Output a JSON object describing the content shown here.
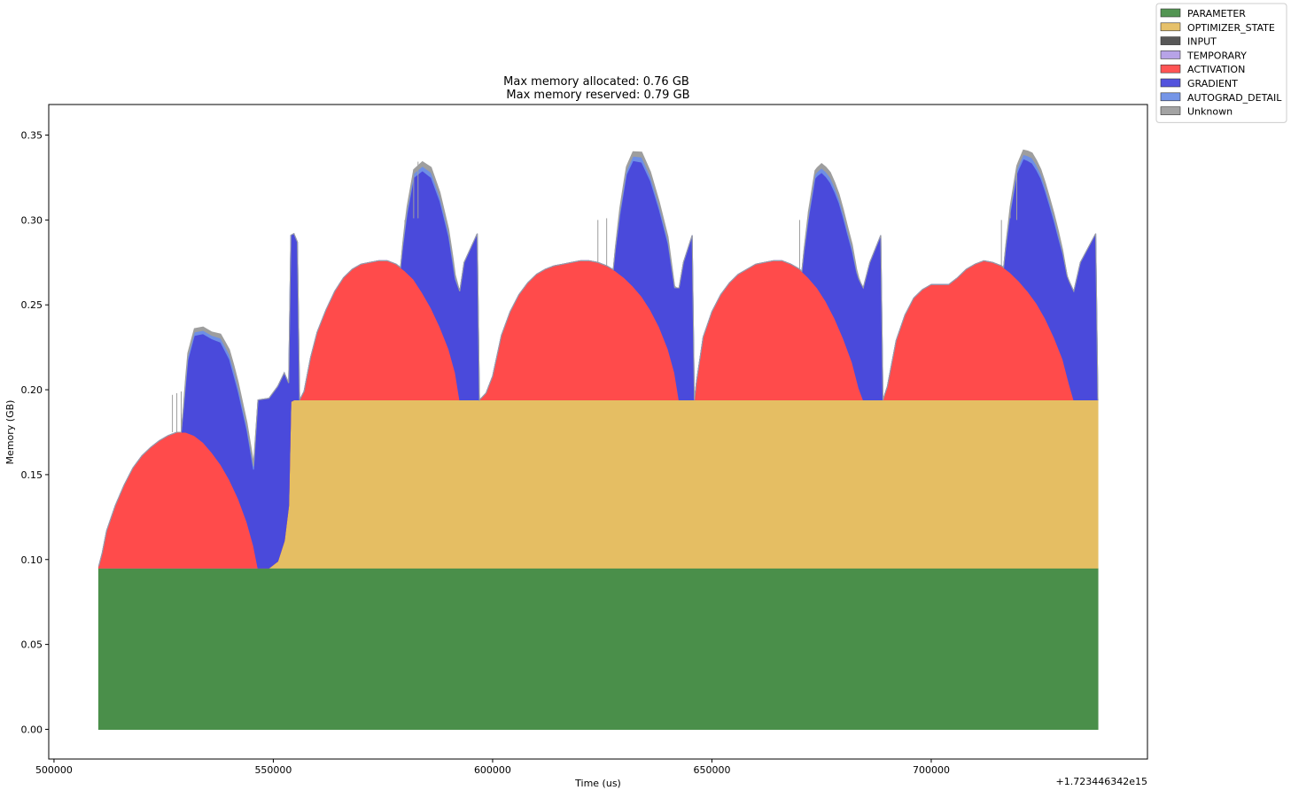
{
  "chart_data": {
    "type": "area",
    "title_lines": [
      "Max memory allocated: 0.76 GB",
      "Max memory reserved: 0.79 GB"
    ],
    "xlabel": "Time (us)",
    "ylabel": "Memory (GB)",
    "x_offset_label": "+1.723446342e15",
    "xlim": [
      498800,
      749300
    ],
    "ylim": [
      -0.0175,
      0.368
    ],
    "x_ticks": [
      500000,
      550000,
      600000,
      650000,
      700000
    ],
    "x_tick_labels": [
      "500000",
      "550000",
      "600000",
      "650000",
      "700000"
    ],
    "y_ticks": [
      0.0,
      0.05,
      0.1,
      0.15,
      0.2,
      0.25,
      0.3,
      0.35
    ],
    "y_tick_labels": [
      "0.00",
      "0.05",
      "0.10",
      "0.15",
      "0.20",
      "0.25",
      "0.30",
      "0.35"
    ],
    "legend_position": "top-right",
    "series": [
      {
        "name": "PARAMETER",
        "color": "#4a8f4a",
        "points": [
          [
            510200,
            0.095
          ],
          [
            738000,
            0.095
          ]
        ]
      },
      {
        "name": "OPTIMIZER_STATE",
        "color": "#e5be63",
        "points": [
          [
            510200,
            0
          ],
          [
            549000,
            0
          ],
          [
            551000,
            0.004
          ],
          [
            552500,
            0.016
          ],
          [
            553500,
            0.037
          ],
          [
            554000,
            0.098
          ],
          [
            554700,
            0.099
          ],
          [
            738000,
            0.099
          ]
        ]
      },
      {
        "name": "INPUT",
        "color": "#4f4f4f",
        "points": [
          [
            510200,
            0
          ],
          [
            738000,
            0
          ]
        ]
      },
      {
        "name": "TEMPORARY",
        "color": "#b39ee6",
        "points": [
          [
            510200,
            0
          ],
          [
            738000,
            0
          ]
        ]
      },
      {
        "name": "ACTIVATION",
        "color": "#ff4b4b",
        "points": [
          [
            510200,
            0.001
          ],
          [
            511000,
            0.009
          ],
          [
            512000,
            0.022
          ],
          [
            514000,
            0.037
          ],
          [
            516000,
            0.049
          ],
          [
            518000,
            0.059
          ],
          [
            520000,
            0.066
          ],
          [
            522000,
            0.071
          ],
          [
            524000,
            0.075
          ],
          [
            526000,
            0.078
          ],
          [
            528000,
            0.08
          ],
          [
            530000,
            0.08
          ],
          [
            532000,
            0.078
          ],
          [
            534000,
            0.074
          ],
          [
            536000,
            0.068
          ],
          [
            538000,
            0.061
          ],
          [
            540000,
            0.052
          ],
          [
            542000,
            0.041
          ],
          [
            544000,
            0.027
          ],
          [
            545500,
            0.013
          ],
          [
            546500,
            0
          ],
          [
            556000,
            0
          ],
          [
            557000,
            0.005
          ],
          [
            558500,
            0.025
          ],
          [
            560000,
            0.04
          ],
          [
            562000,
            0.053
          ],
          [
            564000,
            0.064
          ],
          [
            566000,
            0.072
          ],
          [
            568000,
            0.077
          ],
          [
            570000,
            0.08
          ],
          [
            572000,
            0.081
          ],
          [
            574000,
            0.082
          ],
          [
            576000,
            0.082
          ],
          [
            578000,
            0.08
          ],
          [
            580000,
            0.076
          ],
          [
            582000,
            0.071
          ],
          [
            584000,
            0.063
          ],
          [
            586000,
            0.054
          ],
          [
            588000,
            0.043
          ],
          [
            590000,
            0.03
          ],
          [
            591500,
            0.016
          ],
          [
            592500,
            0
          ],
          [
            597000,
            0
          ],
          [
            598500,
            0.004
          ],
          [
            600000,
            0.014
          ],
          [
            602000,
            0.038
          ],
          [
            604000,
            0.052
          ],
          [
            606000,
            0.062
          ],
          [
            608000,
            0.069
          ],
          [
            610000,
            0.074
          ],
          [
            612000,
            0.077
          ],
          [
            614000,
            0.079
          ],
          [
            616000,
            0.08
          ],
          [
            618000,
            0.081
          ],
          [
            620000,
            0.082
          ],
          [
            622000,
            0.082
          ],
          [
            624000,
            0.081
          ],
          [
            626000,
            0.079
          ],
          [
            628000,
            0.076
          ],
          [
            630000,
            0.072
          ],
          [
            632000,
            0.067
          ],
          [
            634000,
            0.061
          ],
          [
            636000,
            0.053
          ],
          [
            638000,
            0.043
          ],
          [
            640000,
            0.03
          ],
          [
            641500,
            0.016
          ],
          [
            642500,
            0
          ],
          [
            646000,
            0
          ],
          [
            646500,
            0.011
          ],
          [
            648000,
            0.037
          ],
          [
            650000,
            0.052
          ],
          [
            652000,
            0.062
          ],
          [
            654000,
            0.069
          ],
          [
            656000,
            0.074
          ],
          [
            658000,
            0.077
          ],
          [
            660000,
            0.08
          ],
          [
            662000,
            0.081
          ],
          [
            664000,
            0.082
          ],
          [
            666000,
            0.082
          ],
          [
            668000,
            0.08
          ],
          [
            670000,
            0.077
          ],
          [
            672000,
            0.072
          ],
          [
            674000,
            0.066
          ],
          [
            676000,
            0.058
          ],
          [
            678000,
            0.048
          ],
          [
            680000,
            0.036
          ],
          [
            682000,
            0.022
          ],
          [
            683500,
            0.007
          ],
          [
            684500,
            0
          ],
          [
            689000,
            0
          ],
          [
            690000,
            0.008
          ],
          [
            692000,
            0.035
          ],
          [
            694000,
            0.05
          ],
          [
            696000,
            0.06
          ],
          [
            698000,
            0.065
          ],
          [
            700000,
            0.068
          ],
          [
            702000,
            0.068
          ],
          [
            704000,
            0.068
          ],
          [
            706000,
            0.072
          ],
          [
            708000,
            0.077
          ],
          [
            710000,
            0.08
          ],
          [
            712000,
            0.082
          ],
          [
            714000,
            0.081
          ],
          [
            716000,
            0.079
          ],
          [
            718000,
            0.075
          ],
          [
            720000,
            0.07
          ],
          [
            722000,
            0.064
          ],
          [
            724000,
            0.057
          ],
          [
            726000,
            0.048
          ],
          [
            728000,
            0.037
          ],
          [
            730000,
            0.024
          ],
          [
            731500,
            0.009
          ],
          [
            732500,
            0
          ],
          [
            738000,
            0
          ]
        ]
      },
      {
        "name": "GRADIENT",
        "color": "#4a4adb",
        "points": [
          [
            510200,
            0
          ],
          [
            529000,
            0
          ],
          [
            529500,
            0.013
          ],
          [
            530500,
            0.043
          ],
          [
            532000,
            0.059
          ],
          [
            534000,
            0.064
          ],
          [
            536000,
            0.067
          ],
          [
            538000,
            0.072
          ],
          [
            540000,
            0.071
          ],
          [
            542000,
            0.063
          ],
          [
            544000,
            0.054
          ],
          [
            545500,
            0.045
          ],
          [
            546500,
            0.099
          ],
          [
            549000,
            0.1
          ],
          [
            551000,
            0.103
          ],
          [
            552500,
            0.099
          ],
          [
            553500,
            0.072
          ],
          [
            554000,
            0.098
          ],
          [
            554700,
            0.098
          ],
          [
            555500,
            0.093
          ],
          [
            556000,
            0
          ],
          [
            579000,
            0
          ],
          [
            579500,
            0.013
          ],
          [
            580500,
            0.035
          ],
          [
            582000,
            0.06
          ],
          [
            584000,
            0.072
          ],
          [
            586000,
            0.077
          ],
          [
            588000,
            0.074
          ],
          [
            590000,
            0.066
          ],
          [
            591500,
            0.055
          ],
          [
            592500,
            0.064
          ],
          [
            593500,
            0.081
          ],
          [
            596500,
            0.098
          ],
          [
            597000,
            0
          ],
          [
            627500,
            0
          ],
          [
            628000,
            0.013
          ],
          [
            629000,
            0.035
          ],
          [
            630500,
            0.062
          ],
          [
            632000,
            0.074
          ],
          [
            634000,
            0.079
          ],
          [
            636000,
            0.076
          ],
          [
            638000,
            0.069
          ],
          [
            640000,
            0.062
          ],
          [
            641500,
            0.05
          ],
          [
            642500,
            0.066
          ],
          [
            643500,
            0.081
          ],
          [
            645500,
            0.097
          ],
          [
            646000,
            0
          ],
          [
            670500,
            0
          ],
          [
            671000,
            0.013
          ],
          [
            672000,
            0.035
          ],
          [
            673500,
            0.063
          ],
          [
            675000,
            0.072
          ],
          [
            677000,
            0.075
          ],
          [
            679000,
            0.074
          ],
          [
            681000,
            0.068
          ],
          [
            683000,
            0.063
          ],
          [
            684500,
            0.066
          ],
          [
            686000,
            0.081
          ],
          [
            688500,
            0.097
          ],
          [
            689000,
            0
          ],
          [
            716500,
            0
          ],
          [
            717000,
            0.013
          ],
          [
            718000,
            0.035
          ],
          [
            719500,
            0.062
          ],
          [
            721000,
            0.075
          ],
          [
            723000,
            0.079
          ],
          [
            725000,
            0.078
          ],
          [
            727000,
            0.072
          ],
          [
            729000,
            0.065
          ],
          [
            731000,
            0.059
          ],
          [
            732500,
            0.064
          ],
          [
            734000,
            0.081
          ],
          [
            737500,
            0.098
          ],
          [
            738000,
            0
          ]
        ]
      },
      {
        "name": "AUTOGRAD_DETAIL",
        "color": "#6e8fe6",
        "points": [
          [
            510200,
            0
          ],
          [
            529000,
            0
          ],
          [
            530000,
            0.002
          ],
          [
            536000,
            0.002
          ],
          [
            541000,
            0.003
          ],
          [
            545500,
            0.002
          ],
          [
            546500,
            0
          ],
          [
            579000,
            0
          ],
          [
            580000,
            0.002
          ],
          [
            586000,
            0.003
          ],
          [
            591000,
            0.002
          ],
          [
            592500,
            0
          ],
          [
            627500,
            0
          ],
          [
            629000,
            0.002
          ],
          [
            634000,
            0.003
          ],
          [
            640000,
            0.002
          ],
          [
            642000,
            0
          ],
          [
            670500,
            0
          ],
          [
            672000,
            0.002
          ],
          [
            677000,
            0.003
          ],
          [
            682000,
            0.002
          ],
          [
            684000,
            0
          ],
          [
            716500,
            0
          ],
          [
            718000,
            0.002
          ],
          [
            723000,
            0.003
          ],
          [
            729000,
            0.002
          ],
          [
            731000,
            0
          ],
          [
            738000,
            0
          ]
        ]
      },
      {
        "name": "Unknown",
        "color": "#9e9e9e",
        "points": [
          [
            510200,
            0
          ],
          [
            529000,
            0
          ],
          [
            530000,
            0.002
          ],
          [
            536000,
            0.002
          ],
          [
            541000,
            0.003
          ],
          [
            545500,
            0.002
          ],
          [
            546500,
            0
          ],
          [
            579000,
            0
          ],
          [
            580000,
            0.002
          ],
          [
            586000,
            0.003
          ],
          [
            591000,
            0.002
          ],
          [
            592500,
            0
          ],
          [
            627500,
            0
          ],
          [
            629000,
            0.002
          ],
          [
            634000,
            0.003
          ],
          [
            640000,
            0.002
          ],
          [
            642000,
            0
          ],
          [
            670500,
            0
          ],
          [
            672000,
            0.002
          ],
          [
            677000,
            0.003
          ],
          [
            682000,
            0.002
          ],
          [
            684000,
            0
          ],
          [
            716500,
            0
          ],
          [
            718000,
            0.002
          ],
          [
            723000,
            0.003
          ],
          [
            729000,
            0.002
          ],
          [
            731000,
            0
          ],
          [
            738000,
            0
          ]
        ]
      }
    ],
    "spikes": [
      [
        527000,
        0.197
      ],
      [
        528000,
        0.198
      ],
      [
        529000,
        0.199
      ],
      [
        580000,
        0.3
      ],
      [
        582000,
        0.301
      ],
      [
        583000,
        0.301
      ],
      [
        624000,
        0.3
      ],
      [
        626000,
        0.301
      ],
      [
        670000,
        0.3
      ],
      [
        672000,
        0.301
      ],
      [
        716000,
        0.3
      ],
      [
        718000,
        0.301
      ],
      [
        719500,
        0.3
      ]
    ]
  }
}
